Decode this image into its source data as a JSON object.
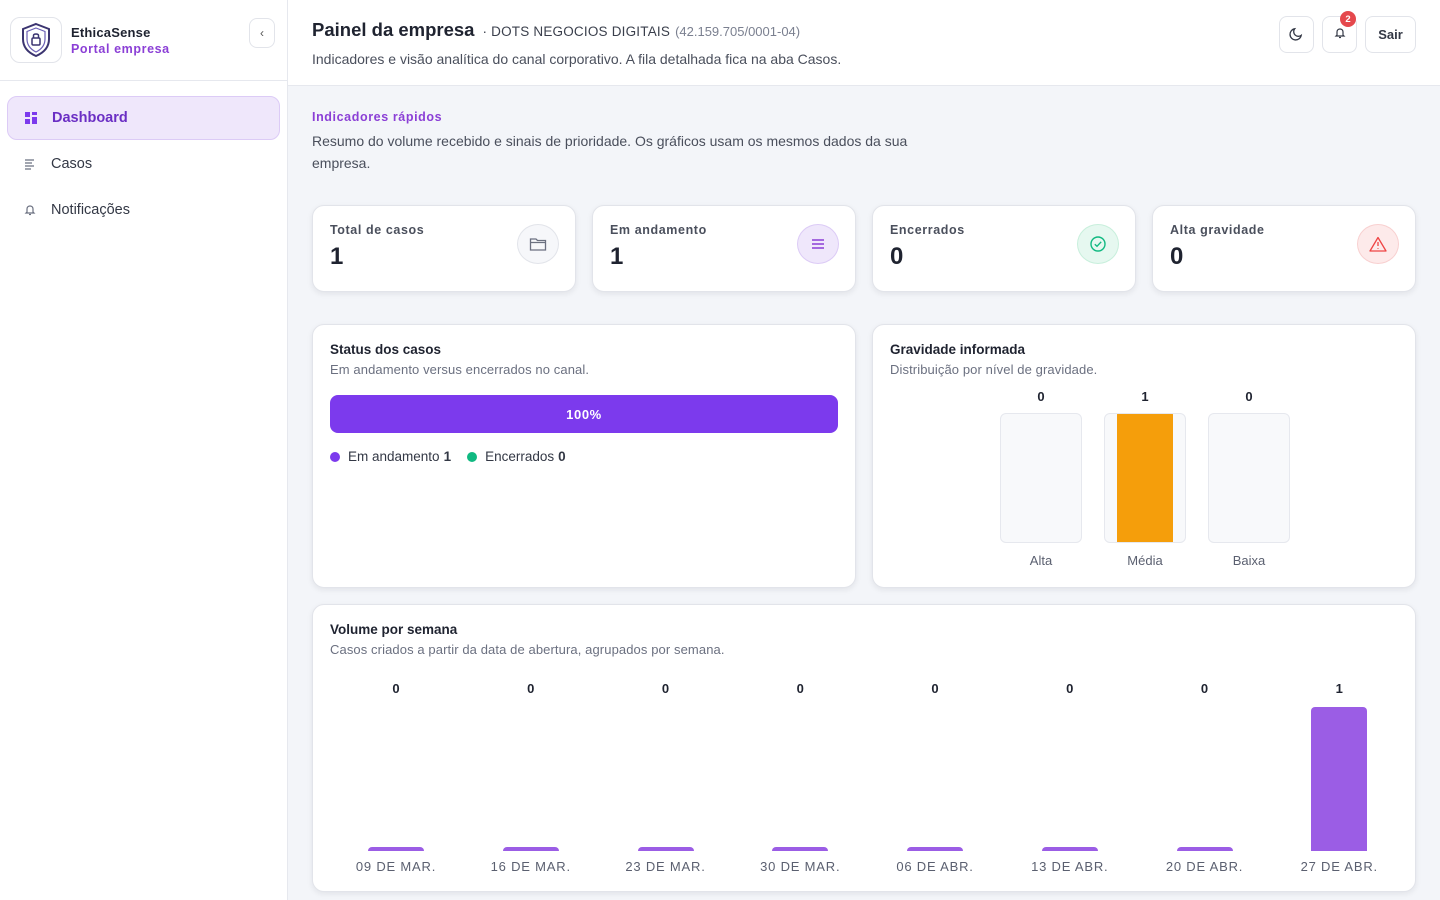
{
  "sidebar": {
    "brand_name": "EthicaSense",
    "brand_sub": "Portal empresa",
    "collapse_label": "‹",
    "items": [
      {
        "label": "Dashboard",
        "icon": "grid-icon",
        "active": true
      },
      {
        "label": "Casos",
        "icon": "list-icon",
        "active": false
      },
      {
        "label": "Notificações",
        "icon": "bell-icon",
        "active": false
      }
    ]
  },
  "header": {
    "title": "Painel da empresa",
    "company": "· DOTS NEGOCIOS DIGITAIS",
    "cnpj": "(42.159.705/0001-04)",
    "description": "Indicadores e visão analítica do canal corporativo. A fila detalhada fica na aba Casos.",
    "notification_count": "2",
    "logout_label": "Sair"
  },
  "main": {
    "kicker": "Indicadores rápidos",
    "description": "Resumo do volume recebido e sinais de prioridade. Os gráficos usam os mesmos dados da sua empresa."
  },
  "stats": [
    {
      "label": "Total de casos",
      "value": "1",
      "icon": "folder-icon",
      "color": "#6b7080"
    },
    {
      "label": "Em andamento",
      "value": "1",
      "icon": "menu-icon",
      "color": "#8b3fd6"
    },
    {
      "label": "Encerrados",
      "value": "0",
      "icon": "check-circle-icon",
      "color": "#10b981"
    },
    {
      "label": "Alta gravidade",
      "value": "0",
      "icon": "warning-icon",
      "color": "#ef4444"
    }
  ],
  "status_card": {
    "title": "Status dos casos",
    "subtitle": "Em andamento versus encerrados no canal.",
    "progress_label": "100%",
    "progress_fraction": 1.0,
    "legend": [
      {
        "label": "Em andamento",
        "value": "1",
        "color": "#7c3aed"
      },
      {
        "label": "Encerrados",
        "value": "0",
        "color": "#10b981"
      }
    ]
  },
  "gravity_card": {
    "title": "Gravidade informada",
    "subtitle": "Distribuição por nível de gravidade."
  },
  "week_card": {
    "title": "Volume por semana",
    "subtitle": "Casos criados a partir da data de abertura, agrupados por semana."
  },
  "chart_data": [
    {
      "type": "bar",
      "categories": [
        "Alta",
        "Média",
        "Baixa"
      ],
      "values": [
        0,
        1,
        0
      ],
      "colors": {
        "bar": "#f59e0b"
      }
    },
    {
      "type": "bar",
      "categories": [
        "09 DE MAR.",
        "16 DE MAR.",
        "23 DE MAR.",
        "30 DE MAR.",
        "06 DE ABR.",
        "13 DE ABR.",
        "20 DE ABR.",
        "27 DE ABR."
      ],
      "values": [
        0,
        0,
        0,
        0,
        0,
        0,
        0,
        1
      ],
      "colors": {
        "bar": "#9b5de5"
      }
    }
  ]
}
